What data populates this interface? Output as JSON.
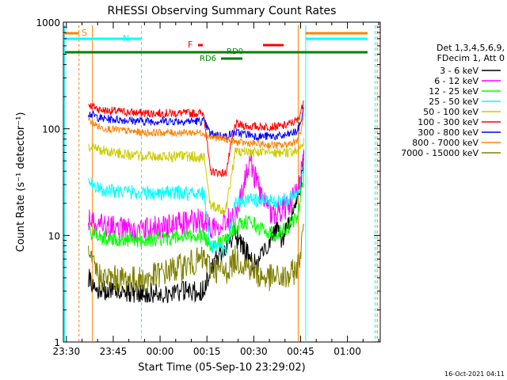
{
  "chart_data": {
    "type": "line",
    "title": "RHESSI Observing Summary Count Rates",
    "xlabel": "Start Time (05-Sep-10 23:29:02)",
    "ylabel": "Count Rate (s⁻¹ detector⁻¹)",
    "y_scale": "log",
    "ylim": [
      1,
      1000
    ],
    "xlim": [
      "23:29:02",
      "01:10:30"
    ],
    "x_ticks": [
      "23:30",
      "23:45",
      "00:00",
      "00:15",
      "00:30",
      "00:45",
      "01:00"
    ],
    "y_ticks": [
      "1",
      "10",
      "100",
      "1000"
    ],
    "timestamp": "16-Oct-2021 04:11",
    "legend": {
      "header": [
        "Det 1,3,4,5,6,9,",
        "FDecim 1, Att 0"
      ],
      "placement": "right"
    },
    "series": [
      {
        "name": "3 - 6 keV",
        "color": "#000000",
        "x_min": [
          8.0,
          12,
          25,
          45,
          47,
          52,
          55,
          60,
          62,
          65,
          68,
          70,
          72,
          75,
          76.5,
          77
        ],
        "values": [
          4,
          3,
          2.9,
          3.0,
          4.8,
          8,
          10,
          6,
          5,
          8,
          12,
          9,
          13,
          20,
          40,
          55
        ]
      },
      {
        "name": "6 - 12 keV",
        "color": "#ff00ff",
        "x_min": [
          8.0,
          12,
          25,
          45,
          47,
          52,
          55,
          60,
          62,
          65,
          68,
          70,
          72,
          75,
          76.5,
          77
        ],
        "values": [
          14,
          12,
          11,
          14,
          12,
          14,
          15,
          50,
          30,
          18,
          16,
          18,
          19,
          25,
          45,
          70
        ]
      },
      {
        "name": "12 - 25 keV",
        "color": "#00ff00",
        "x_min": [
          8.0,
          12,
          25,
          45,
          47,
          52,
          55,
          60,
          62,
          65,
          68,
          70,
          72,
          75,
          76.5,
          77
        ],
        "values": [
          11,
          9.5,
          9,
          10,
          8,
          9,
          12,
          14,
          12,
          11,
          10,
          11,
          12,
          15,
          28,
          40
        ]
      },
      {
        "name": "25 - 50 keV",
        "color": "#00ffff",
        "x_min": [
          8.0,
          12,
          25,
          45,
          47,
          52,
          55,
          60,
          62,
          65,
          68,
          70,
          72,
          75,
          76.5,
          77
        ],
        "values": [
          33,
          27,
          25,
          25,
          8,
          7,
          20,
          22,
          21,
          21,
          21,
          21,
          22,
          24,
          35,
          45
        ]
      },
      {
        "name": "50 - 100 keV",
        "color": "#cccc00",
        "x_min": [
          8.0,
          12,
          25,
          45,
          47,
          52,
          55,
          60,
          62,
          65,
          68,
          70,
          72,
          75,
          76.5,
          77
        ],
        "values": [
          70,
          63,
          55,
          55,
          19,
          17,
          60,
          60,
          60,
          60,
          60,
          60,
          60,
          62,
          70,
          80
        ]
      },
      {
        "name": "100 - 300 keV",
        "color": "#ff0000",
        "x_min": [
          8.0,
          12,
          25,
          45,
          47,
          52,
          55,
          60,
          62,
          65,
          68,
          70,
          72,
          75,
          76.5,
          77
        ],
        "values": [
          170,
          150,
          140,
          140,
          40,
          38,
          110,
          105,
          105,
          105,
          105,
          105,
          110,
          120,
          160,
          200
        ]
      },
      {
        "name": "300 - 800 keV",
        "color": "#0000ff",
        "x_min": [
          8.0,
          12,
          25,
          45,
          47,
          52,
          55,
          60,
          62,
          65,
          68,
          70,
          72,
          75,
          76.5,
          77
        ],
        "values": [
          140,
          125,
          118,
          118,
          90,
          85,
          92,
          88,
          85,
          85,
          85,
          85,
          88,
          95,
          130,
          170
        ]
      },
      {
        "name": "800 - 7000 keV",
        "color": "#ff8000",
        "x_min": [
          8.0,
          12,
          25,
          45,
          47,
          52,
          55,
          60,
          62,
          65,
          68,
          70,
          72,
          75,
          76.5,
          77
        ],
        "values": [
          120,
          102,
          92,
          92,
          84,
          80,
          75,
          73,
          72,
          71,
          70,
          70,
          72,
          78,
          105,
          150
        ]
      },
      {
        "name": "7000 - 15000 keV",
        "color": "#808000",
        "x_min": [
          8.0,
          12,
          25,
          45,
          47,
          52,
          55,
          60,
          62,
          65,
          68,
          70,
          72,
          75,
          76.5,
          77
        ],
        "values": [
          6,
          4,
          3.8,
          6,
          5,
          4.5,
          6,
          5,
          4.2,
          4,
          4,
          4,
          4,
          5,
          9,
          15
        ]
      }
    ],
    "annotations": {
      "labels": [
        "S",
        "N",
        "F",
        "RD0",
        "RD6"
      ]
    }
  }
}
